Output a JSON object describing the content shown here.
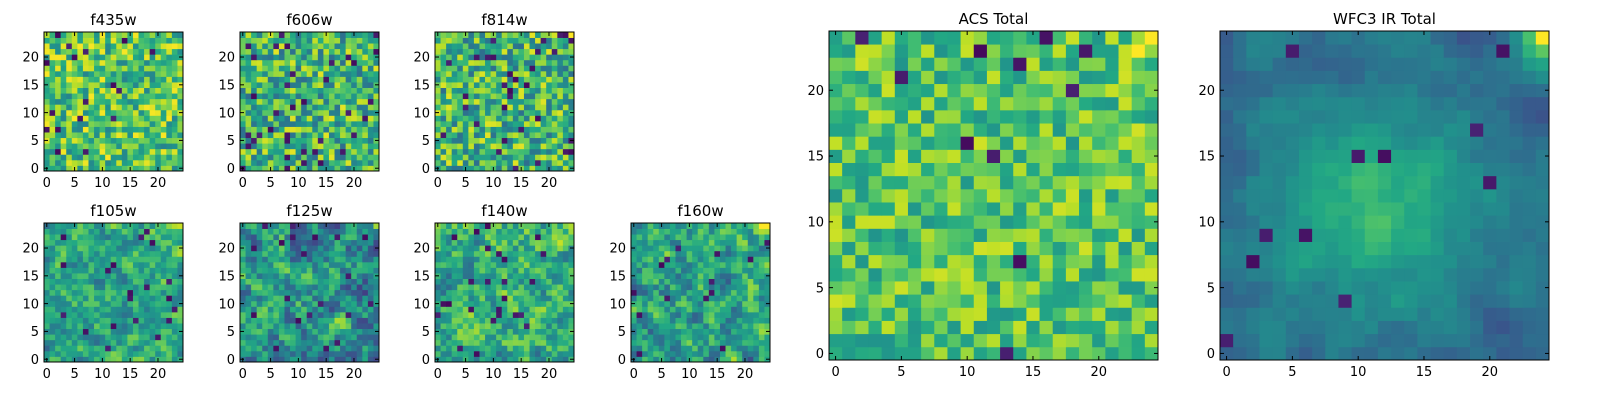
{
  "chart_data": [
    {
      "type": "heatmap",
      "title": "f435w",
      "grid_size": 25,
      "x_ticks": [
        0,
        5,
        10,
        15,
        20
      ],
      "y_ticks": [
        0,
        5,
        10,
        15,
        20
      ],
      "colormap": "viridis",
      "pattern": "noise",
      "seed": 11,
      "base": 0.72,
      "noise": 0.55,
      "smooth": 0,
      "dark_fraction": 0.04,
      "bright_corner": 0.0
    },
    {
      "type": "heatmap",
      "title": "f606w",
      "grid_size": 25,
      "x_ticks": [
        0,
        5,
        10,
        15,
        20
      ],
      "y_ticks": [
        0,
        5,
        10,
        15,
        20
      ],
      "colormap": "viridis",
      "pattern": "noise",
      "seed": 23,
      "base": 0.66,
      "noise": 0.6,
      "smooth": 0,
      "dark_fraction": 0.05,
      "bright_corner": 0.0
    },
    {
      "type": "heatmap",
      "title": "f814w",
      "grid_size": 25,
      "x_ticks": [
        0,
        5,
        10,
        15,
        20
      ],
      "y_ticks": [
        0,
        5,
        10,
        15,
        20
      ],
      "colormap": "viridis",
      "pattern": "noise",
      "seed": 37,
      "base": 0.66,
      "noise": 0.6,
      "smooth": 0,
      "dark_fraction": 0.05,
      "bright_corner": 0.4
    },
    {
      "type": "heatmap",
      "title": "f105w",
      "grid_size": 25,
      "x_ticks": [
        0,
        5,
        10,
        15,
        20
      ],
      "y_ticks": [
        0,
        5,
        10,
        15,
        20
      ],
      "colormap": "viridis",
      "pattern": "smooth",
      "seed": 41,
      "base": 0.6,
      "noise": 0.55,
      "smooth": 1,
      "dark_fraction": 0.03,
      "bright_corner": 0.35
    },
    {
      "type": "heatmap",
      "title": "f125w",
      "grid_size": 25,
      "x_ticks": [
        0,
        5,
        10,
        15,
        20
      ],
      "y_ticks": [
        0,
        5,
        10,
        15,
        20
      ],
      "colormap": "viridis",
      "pattern": "smooth",
      "seed": 53,
      "base": 0.52,
      "noise": 0.7,
      "smooth": 1,
      "dark_fraction": 0.04,
      "bright_corner": 0.35
    },
    {
      "type": "heatmap",
      "title": "f140w",
      "grid_size": 25,
      "x_ticks": [
        0,
        5,
        10,
        15,
        20
      ],
      "y_ticks": [
        0,
        5,
        10,
        15,
        20
      ],
      "colormap": "viridis",
      "pattern": "smooth",
      "seed": 67,
      "base": 0.62,
      "noise": 0.55,
      "smooth": 1,
      "dark_fraction": 0.03,
      "bright_corner": 0.45
    },
    {
      "type": "heatmap",
      "title": "f160w",
      "grid_size": 25,
      "x_ticks": [
        0,
        5,
        10,
        15,
        20
      ],
      "y_ticks": [
        0,
        5,
        10,
        15,
        20
      ],
      "colormap": "viridis",
      "pattern": "smooth",
      "seed": 79,
      "base": 0.56,
      "noise": 0.65,
      "smooth": 1,
      "dark_fraction": 0.03,
      "bright_corner": 0.5
    },
    {
      "type": "heatmap",
      "title": "ACS Total",
      "grid_size": 25,
      "x_ticks": [
        0,
        5,
        10,
        15,
        20
      ],
      "y_ticks": [
        0,
        5,
        10,
        15,
        20
      ],
      "colormap": "viridis",
      "pattern": "noise",
      "seed": 97,
      "base": 0.72,
      "noise": 0.42,
      "smooth": 0,
      "dark_fraction": 0.025,
      "bright_corner": 0.3
    },
    {
      "type": "heatmap",
      "title": "WFC3 IR Total",
      "grid_size": 25,
      "x_ticks": [
        0,
        5,
        10,
        15,
        20
      ],
      "y_ticks": [
        0,
        5,
        10,
        15,
        20
      ],
      "colormap": "viridis",
      "pattern": "blob",
      "seed": 113,
      "base": 0.4,
      "noise": 0.22,
      "smooth": 2,
      "dark_fraction": 0.02,
      "bright_corner": 0.7
    }
  ]
}
